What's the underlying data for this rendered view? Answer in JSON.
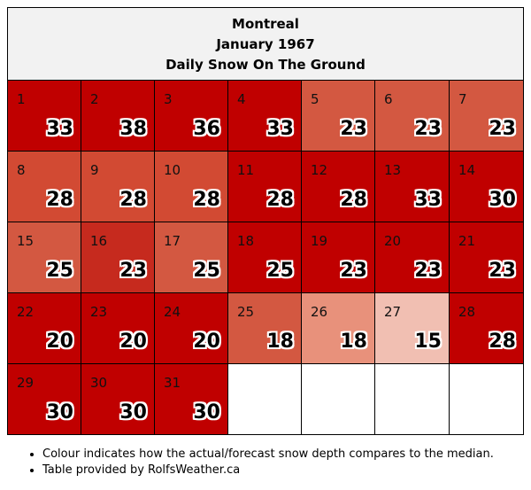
{
  "header": {
    "city": "Montreal",
    "month": "January 1967",
    "subtitle": "Daily Snow On The Ground"
  },
  "colors": {
    "deep_red": "#c00000",
    "red": "#c62a1e",
    "medium": "#d24a33",
    "light": "#d35841",
    "pale": "#e8917b",
    "very_pale": "#f1bfb2",
    "empty": "#ffffff"
  },
  "days": [
    {
      "day": "1",
      "value": "33",
      "color": "#c00000"
    },
    {
      "day": "2",
      "value": "38",
      "color": "#c00000"
    },
    {
      "day": "3",
      "value": "36",
      "color": "#c00000"
    },
    {
      "day": "4",
      "value": "33",
      "color": "#c00000"
    },
    {
      "day": "5",
      "value": "23",
      "color": "#d35841"
    },
    {
      "day": "6",
      "value": "23",
      "color": "#d35841"
    },
    {
      "day": "7",
      "value": "23",
      "color": "#d35841"
    },
    {
      "day": "8",
      "value": "28",
      "color": "#d24a33"
    },
    {
      "day": "9",
      "value": "28",
      "color": "#d24a33"
    },
    {
      "day": "10",
      "value": "28",
      "color": "#d24a33"
    },
    {
      "day": "11",
      "value": "28",
      "color": "#c00000"
    },
    {
      "day": "12",
      "value": "28",
      "color": "#c00000"
    },
    {
      "day": "13",
      "value": "33",
      "color": "#c00000"
    },
    {
      "day": "14",
      "value": "30",
      "color": "#c00000"
    },
    {
      "day": "15",
      "value": "25",
      "color": "#d35841"
    },
    {
      "day": "16",
      "value": "23",
      "color": "#c62a1e"
    },
    {
      "day": "17",
      "value": "25",
      "color": "#d35841"
    },
    {
      "day": "18",
      "value": "25",
      "color": "#c00000"
    },
    {
      "day": "19",
      "value": "23",
      "color": "#c00000"
    },
    {
      "day": "20",
      "value": "23",
      "color": "#c00000"
    },
    {
      "day": "21",
      "value": "23",
      "color": "#c00000"
    },
    {
      "day": "22",
      "value": "20",
      "color": "#c00000"
    },
    {
      "day": "23",
      "value": "20",
      "color": "#c00000"
    },
    {
      "day": "24",
      "value": "20",
      "color": "#c00000"
    },
    {
      "day": "25",
      "value": "18",
      "color": "#d35841"
    },
    {
      "day": "26",
      "value": "18",
      "color": "#e8917b"
    },
    {
      "day": "27",
      "value": "15",
      "color": "#f1bfb2"
    },
    {
      "day": "28",
      "value": "28",
      "color": "#c00000"
    },
    {
      "day": "29",
      "value": "30",
      "color": "#c00000"
    },
    {
      "day": "30",
      "value": "30",
      "color": "#c00000"
    },
    {
      "day": "31",
      "value": "30",
      "color": "#c00000"
    }
  ],
  "notes": [
    "Colour indicates how the actual/forecast snow depth compares to the median.",
    "Table provided by RolfsWeather.ca"
  ]
}
